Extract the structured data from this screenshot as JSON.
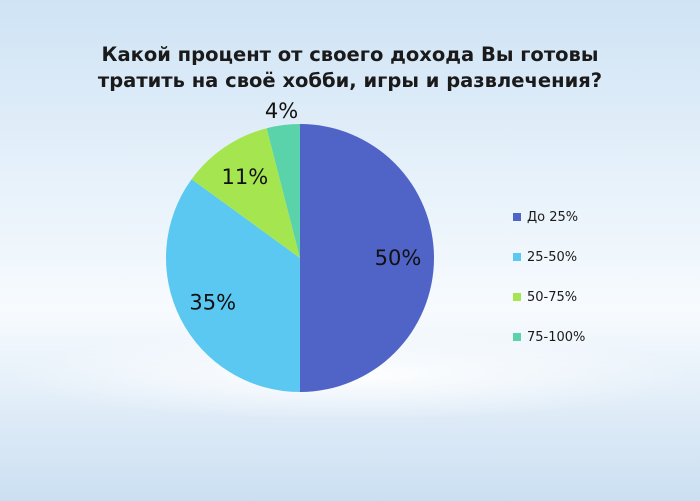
{
  "chart_data": {
    "type": "pie",
    "title_lines": [
      "Какой процент от своего дохода Вы готовы",
      "тратить на своё хобби, игры и развлечения?"
    ],
    "slices": [
      {
        "label": "До 25%",
        "value": 50,
        "value_label": "50%",
        "color": "#5064c8"
      },
      {
        "label": "25-50%",
        "value": 35,
        "value_label": "35%",
        "color": "#5ac8f0"
      },
      {
        "label": "50-75%",
        "value": 11,
        "value_label": "11%",
        "color": "#a5e650"
      },
      {
        "label": "75-100%",
        "value": 4,
        "value_label": "4%",
        "color": "#5ad2aa"
      }
    ],
    "legend_position": "right"
  }
}
